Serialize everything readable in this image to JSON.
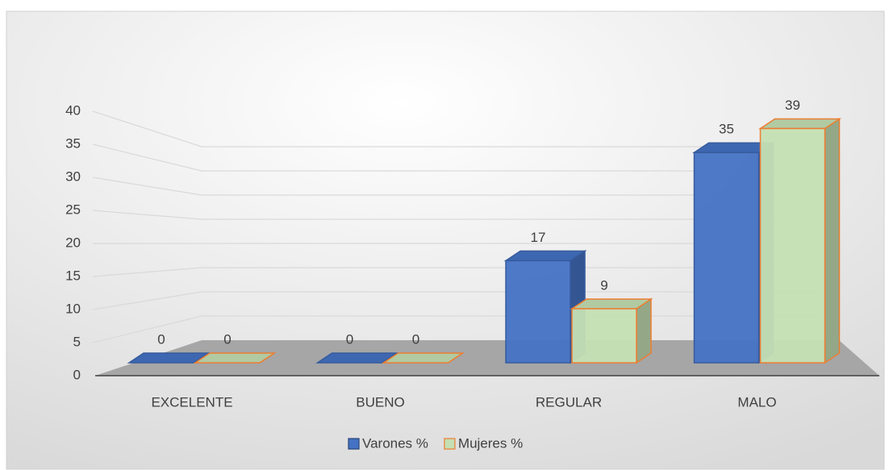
{
  "chart_data": {
    "type": "bar3d",
    "categories": [
      "EXCELENTE",
      "BUENO",
      "REGULAR",
      "MALO"
    ],
    "series": [
      {
        "name": "Varones %",
        "color": "#4472c4",
        "values": [
          0,
          0,
          17,
          35
        ]
      },
      {
        "name": "Mujeres %",
        "color": "#c5e0b4",
        "edge": "#ed7d31",
        "values": [
          0,
          0,
          9,
          39
        ]
      }
    ],
    "ylim": [
      0,
      40
    ],
    "yticks": [
      0,
      5,
      10,
      15,
      20,
      25,
      30,
      35,
      40
    ],
    "grid": true,
    "legend": "bottom"
  }
}
